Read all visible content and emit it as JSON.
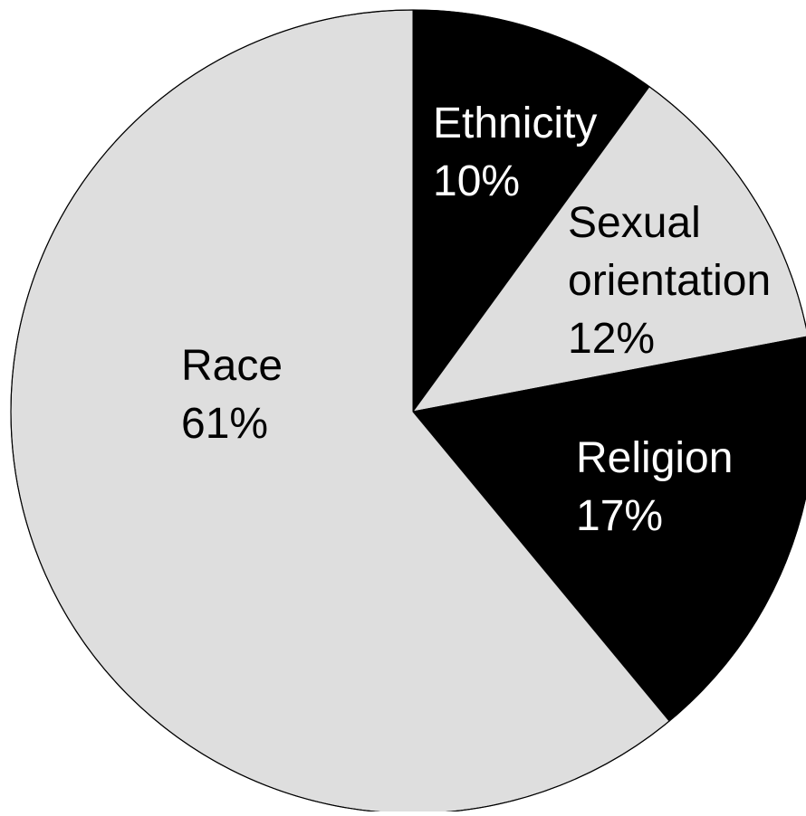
{
  "chart_data": {
    "type": "pie",
    "title": "",
    "start_angle_deg": 0,
    "direction": "clockwise",
    "slices": [
      {
        "label": "Ethnicity",
        "value": 10,
        "value_label": "10%",
        "fill": "#000000",
        "text_color": "#ffffff"
      },
      {
        "label": "Sexual orientation",
        "label_lines": [
          "Sexual",
          "orientation"
        ],
        "value": 12,
        "value_label": "12%",
        "fill": "#dedede",
        "text_color": "#000000"
      },
      {
        "label": "Religion",
        "value": 17,
        "value_label": "17%",
        "fill": "#000000",
        "text_color": "#ffffff"
      },
      {
        "label": "Race",
        "value": 61,
        "value_label": "61%",
        "fill": "#dedede",
        "text_color": "#000000"
      }
    ],
    "outline_color": "#000000"
  }
}
